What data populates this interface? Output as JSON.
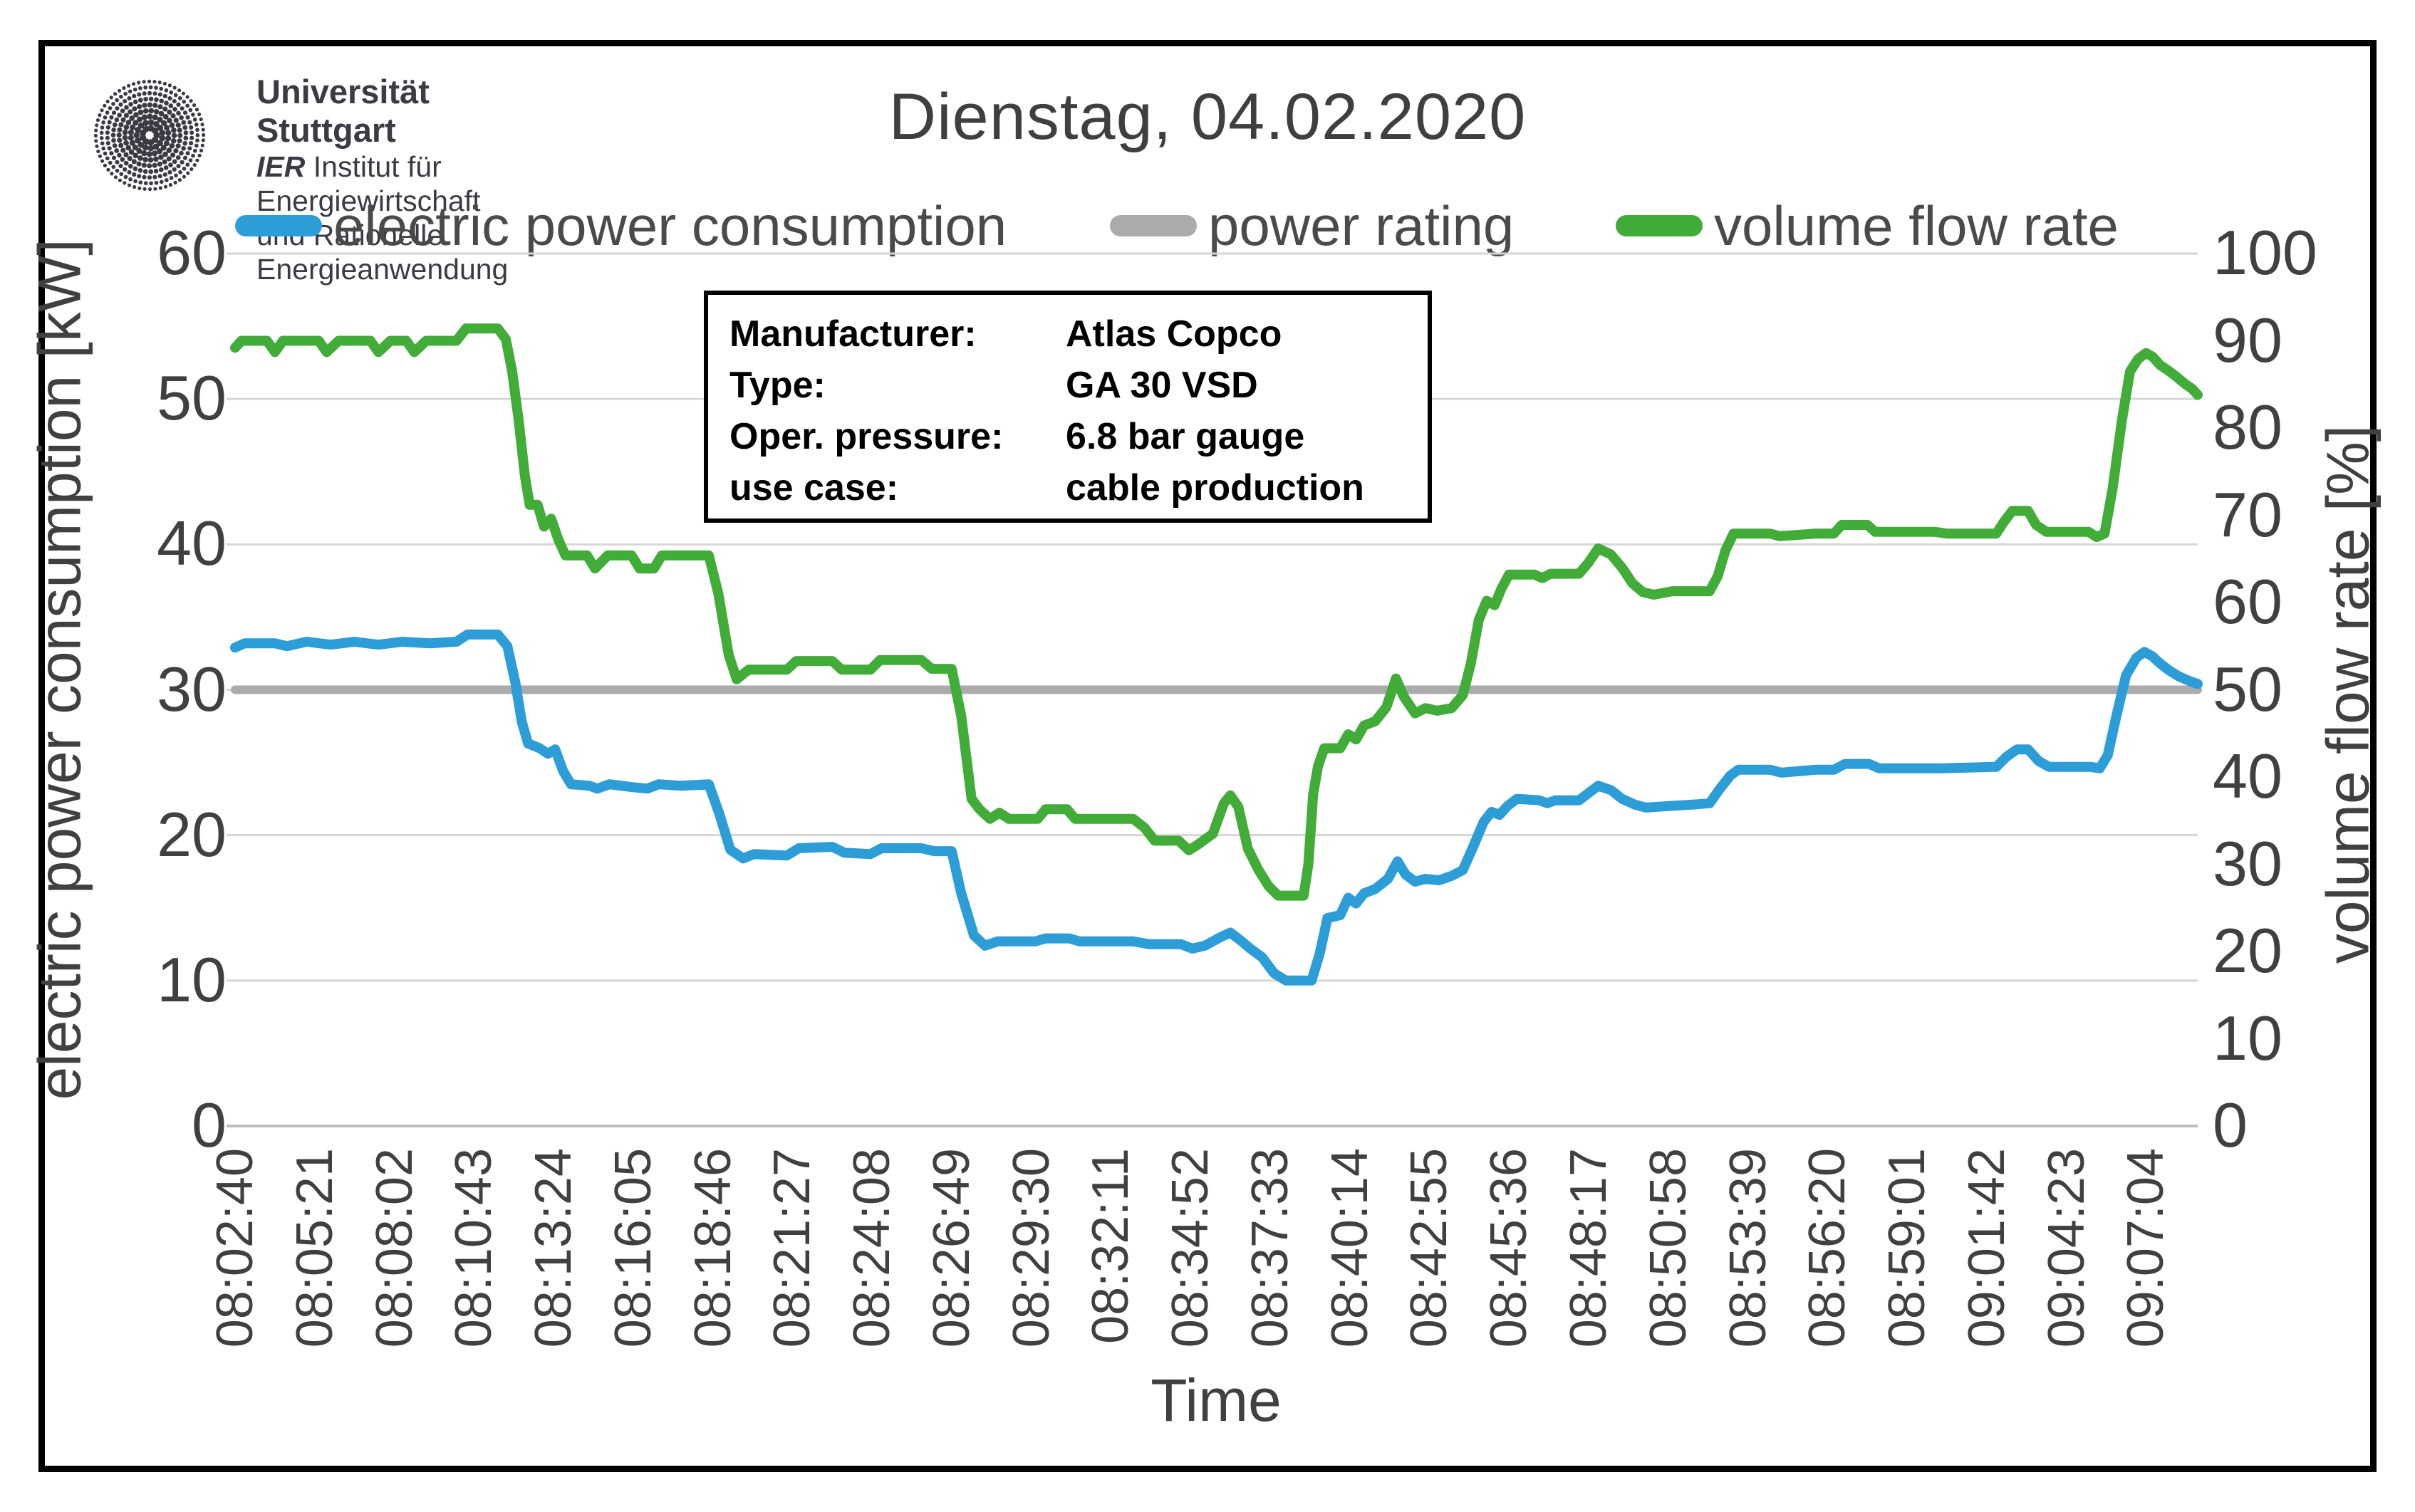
{
  "header": {
    "title": "Dienstag, 04.02.2020",
    "logo": {
      "line1": "Universität Stuttgart",
      "line2_prefix": "IER",
      "line2_rest": " Institut für Energiewirtschaft",
      "line3": "und Rationelle Energieanwendung"
    }
  },
  "legend": [
    {
      "label": "electric power consumption",
      "color": "#2D9DD7"
    },
    {
      "label": "power rating",
      "color": "#ABABAB"
    },
    {
      "label": "volume flow rate",
      "color": "#42AC39"
    }
  ],
  "info_box": {
    "rows": [
      {
        "label": "Manufacturer:",
        "value": "Atlas Copco"
      },
      {
        "label": "Type:",
        "value": "GA 30 VSD"
      },
      {
        "label": "Oper. pressure:",
        "value": "6.8 bar gauge"
      },
      {
        "label": "use case:",
        "value": "cable production"
      }
    ]
  },
  "chart_data": {
    "type": "line",
    "title": "Dienstag, 04.02.2020",
    "x_title": "Time",
    "x_labels": [
      "08:02:40",
      "08:05:21",
      "08:08:02",
      "08:10:43",
      "08:13:24",
      "08:16:05",
      "08:18:46",
      "08:21:27",
      "08:24:08",
      "08:26:49",
      "08:29:30",
      "08:32:11",
      "08:34:52",
      "08:37:33",
      "08:40:14",
      "08:42:55",
      "08:45:36",
      "08:48:17",
      "08:50:58",
      "08:53:39",
      "08:56:20",
      "08:59:01",
      "09:01:42",
      "09:04:23",
      "09:07:04"
    ],
    "x_index_max": 24.65,
    "grid": {
      "horizontal": true,
      "vertical": false,
      "color": "#D6D6D6"
    },
    "left_axis": {
      "title": "electric power consumption [kW]",
      "min": 0,
      "max": 60,
      "ticks": [
        0,
        10,
        20,
        30,
        40,
        50,
        60
      ]
    },
    "right_axis": {
      "title": "volume flow rate [%]",
      "min": 0,
      "max": 100,
      "ticks": [
        0,
        10,
        20,
        30,
        40,
        50,
        60,
        70,
        80,
        90,
        100
      ]
    },
    "series": [
      {
        "name": "power rating",
        "axis": "left",
        "color": "#ABABAB",
        "width": 12,
        "points": [
          [
            0,
            30
          ],
          [
            24.65,
            30
          ]
        ]
      },
      {
        "name": "volume flow rate",
        "axis": "right",
        "color": "#42AC39",
        "width": 14,
        "points": [
          [
            0,
            89.2
          ],
          [
            0.08,
            90
          ],
          [
            0.4,
            90
          ],
          [
            0.5,
            88.7
          ],
          [
            0.6,
            90
          ],
          [
            1.05,
            90
          ],
          [
            1.15,
            88.7
          ],
          [
            1.3,
            90
          ],
          [
            1.7,
            90
          ],
          [
            1.8,
            88.7
          ],
          [
            1.95,
            90
          ],
          [
            2.15,
            90
          ],
          [
            2.25,
            88.7
          ],
          [
            2.4,
            90
          ],
          [
            2.78,
            90
          ],
          [
            2.9,
            91.4
          ],
          [
            3.3,
            91.4
          ],
          [
            3.4,
            90.2
          ],
          [
            3.48,
            86.5
          ],
          [
            3.56,
            81
          ],
          [
            3.64,
            74.5
          ],
          [
            3.7,
            71.2
          ],
          [
            3.8,
            71.2
          ],
          [
            3.88,
            68.7
          ],
          [
            3.97,
            69.6
          ],
          [
            4.06,
            67.2
          ],
          [
            4.15,
            65.4
          ],
          [
            4.42,
            65.4
          ],
          [
            4.52,
            63.9
          ],
          [
            4.68,
            65.4
          ],
          [
            4.98,
            65.4
          ],
          [
            5.08,
            63.9
          ],
          [
            5.26,
            63.9
          ],
          [
            5.36,
            65.4
          ],
          [
            5.95,
            65.4
          ],
          [
            6.07,
            61
          ],
          [
            6.2,
            54
          ],
          [
            6.3,
            51.2
          ],
          [
            6.45,
            52.3
          ],
          [
            6.93,
            52.3
          ],
          [
            7.05,
            53.3
          ],
          [
            7.5,
            53.3
          ],
          [
            7.62,
            52.3
          ],
          [
            7.98,
            52.3
          ],
          [
            8.1,
            53.4
          ],
          [
            8.62,
            53.4
          ],
          [
            8.75,
            52.4
          ],
          [
            9,
            52.4
          ],
          [
            9.12,
            47
          ],
          [
            9.25,
            37.5
          ],
          [
            9.35,
            36.3
          ],
          [
            9.48,
            35.2
          ],
          [
            9.6,
            35.9
          ],
          [
            9.72,
            35.2
          ],
          [
            10.08,
            35.2
          ],
          [
            10.18,
            36.3
          ],
          [
            10.45,
            36.3
          ],
          [
            10.55,
            35.2
          ],
          [
            11.28,
            35.2
          ],
          [
            11.42,
            34.2
          ],
          [
            11.55,
            32.7
          ],
          [
            11.85,
            32.7
          ],
          [
            11.98,
            31.6
          ],
          [
            12.1,
            32.3
          ],
          [
            12.28,
            33.5
          ],
          [
            12.42,
            37
          ],
          [
            12.5,
            37.9
          ],
          [
            12.6,
            36.6
          ],
          [
            12.72,
            31.8
          ],
          [
            12.85,
            29.4
          ],
          [
            12.98,
            27.5
          ],
          [
            13.1,
            26.4
          ],
          [
            13.42,
            26.4
          ],
          [
            13.48,
            30
          ],
          [
            13.54,
            38
          ],
          [
            13.6,
            41.2
          ],
          [
            13.68,
            43.3
          ],
          [
            13.88,
            43.3
          ],
          [
            13.98,
            44.9
          ],
          [
            14.08,
            44.3
          ],
          [
            14.18,
            45.9
          ],
          [
            14.32,
            46.4
          ],
          [
            14.46,
            48
          ],
          [
            14.58,
            51.3
          ],
          [
            14.68,
            49.2
          ],
          [
            14.82,
            47.3
          ],
          [
            14.95,
            47.9
          ],
          [
            15.1,
            47.6
          ],
          [
            15.28,
            47.9
          ],
          [
            15.42,
            49.4
          ],
          [
            15.52,
            53
          ],
          [
            15.62,
            58
          ],
          [
            15.72,
            60.2
          ],
          [
            15.82,
            59.7
          ],
          [
            15.9,
            61.5
          ],
          [
            16,
            63.2
          ],
          [
            16.32,
            63.2
          ],
          [
            16.42,
            62.8
          ],
          [
            16.52,
            63.3
          ],
          [
            16.88,
            63.3
          ],
          [
            17,
            64.6
          ],
          [
            17.12,
            66.2
          ],
          [
            17.28,
            65.5
          ],
          [
            17.42,
            64
          ],
          [
            17.55,
            62.2
          ],
          [
            17.68,
            61.2
          ],
          [
            17.82,
            60.9
          ],
          [
            18.05,
            61.3
          ],
          [
            18.52,
            61.3
          ],
          [
            18.62,
            63
          ],
          [
            18.72,
            66
          ],
          [
            18.82,
            67.9
          ],
          [
            19.28,
            67.9
          ],
          [
            19.4,
            67.6
          ],
          [
            19.85,
            67.9
          ],
          [
            20.08,
            67.9
          ],
          [
            20.18,
            68.9
          ],
          [
            20.5,
            68.9
          ],
          [
            20.6,
            68.1
          ],
          [
            21.35,
            68.1
          ],
          [
            21.5,
            67.9
          ],
          [
            22.12,
            67.9
          ],
          [
            22.22,
            69.3
          ],
          [
            22.32,
            70.5
          ],
          [
            22.52,
            70.5
          ],
          [
            22.62,
            68.9
          ],
          [
            22.75,
            68.1
          ],
          [
            23.28,
            68.1
          ],
          [
            23.38,
            67.5
          ],
          [
            23.48,
            67.9
          ],
          [
            23.58,
            73
          ],
          [
            23.7,
            81
          ],
          [
            23.8,
            86.5
          ],
          [
            23.9,
            87.9
          ],
          [
            24,
            88.6
          ],
          [
            24.08,
            88.2
          ],
          [
            24.18,
            87.2
          ],
          [
            24.28,
            86.6
          ],
          [
            24.38,
            85.9
          ],
          [
            24.5,
            85
          ],
          [
            24.58,
            84.5
          ],
          [
            24.65,
            83.8
          ]
        ]
      },
      {
        "name": "electric power consumption",
        "axis": "left",
        "color": "#2D9DD7",
        "width": 14,
        "points": [
          [
            0,
            32.9
          ],
          [
            0.12,
            33.2
          ],
          [
            0.5,
            33.2
          ],
          [
            0.65,
            33
          ],
          [
            0.9,
            33.3
          ],
          [
            1.2,
            33.1
          ],
          [
            1.5,
            33.3
          ],
          [
            1.8,
            33.1
          ],
          [
            2.1,
            33.3
          ],
          [
            2.45,
            33.2
          ],
          [
            2.78,
            33.3
          ],
          [
            2.92,
            33.8
          ],
          [
            3.3,
            33.8
          ],
          [
            3.42,
            33
          ],
          [
            3.52,
            30.5
          ],
          [
            3.6,
            27.8
          ],
          [
            3.68,
            26.3
          ],
          [
            3.82,
            26
          ],
          [
            3.93,
            25.6
          ],
          [
            4.02,
            25.9
          ],
          [
            4.12,
            24.4
          ],
          [
            4.22,
            23.5
          ],
          [
            4.45,
            23.4
          ],
          [
            4.55,
            23.2
          ],
          [
            4.7,
            23.5
          ],
          [
            5,
            23.3
          ],
          [
            5.18,
            23.2
          ],
          [
            5.32,
            23.5
          ],
          [
            5.6,
            23.4
          ],
          [
            5.95,
            23.5
          ],
          [
            6.08,
            21.5
          ],
          [
            6.22,
            19
          ],
          [
            6.38,
            18.4
          ],
          [
            6.52,
            18.7
          ],
          [
            6.93,
            18.6
          ],
          [
            7.08,
            19.1
          ],
          [
            7.5,
            19.2
          ],
          [
            7.65,
            18.8
          ],
          [
            7.98,
            18.7
          ],
          [
            8.12,
            19.1
          ],
          [
            8.62,
            19.1
          ],
          [
            8.78,
            18.9
          ],
          [
            9,
            18.9
          ],
          [
            9.12,
            16
          ],
          [
            9.28,
            13.1
          ],
          [
            9.42,
            12.4
          ],
          [
            9.58,
            12.7
          ],
          [
            10.05,
            12.7
          ],
          [
            10.18,
            12.9
          ],
          [
            10.48,
            12.9
          ],
          [
            10.6,
            12.7
          ],
          [
            11.28,
            12.7
          ],
          [
            11.48,
            12.5
          ],
          [
            11.88,
            12.5
          ],
          [
            12.02,
            12.2
          ],
          [
            12.18,
            12.4
          ],
          [
            12.38,
            13
          ],
          [
            12.5,
            13.3
          ],
          [
            12.62,
            12.8
          ],
          [
            12.75,
            12.2
          ],
          [
            12.9,
            11.6
          ],
          [
            13.05,
            10.5
          ],
          [
            13.2,
            10
          ],
          [
            13.52,
            10
          ],
          [
            13.62,
            11.8
          ],
          [
            13.72,
            14.3
          ],
          [
            13.88,
            14.5
          ],
          [
            13.98,
            15.7
          ],
          [
            14.08,
            15.3
          ],
          [
            14.18,
            16
          ],
          [
            14.32,
            16.3
          ],
          [
            14.48,
            17
          ],
          [
            14.6,
            18.2
          ],
          [
            14.7,
            17.3
          ],
          [
            14.82,
            16.8
          ],
          [
            14.95,
            17
          ],
          [
            15.12,
            16.9
          ],
          [
            15.28,
            17.2
          ],
          [
            15.42,
            17.6
          ],
          [
            15.55,
            19.2
          ],
          [
            15.68,
            20.9
          ],
          [
            15.78,
            21.6
          ],
          [
            15.88,
            21.4
          ],
          [
            15.98,
            22
          ],
          [
            16.1,
            22.5
          ],
          [
            16.38,
            22.4
          ],
          [
            16.48,
            22.2
          ],
          [
            16.58,
            22.4
          ],
          [
            16.88,
            22.4
          ],
          [
            17,
            22.9
          ],
          [
            17.12,
            23.4
          ],
          [
            17.28,
            23.1
          ],
          [
            17.42,
            22.5
          ],
          [
            17.58,
            22.1
          ],
          [
            17.72,
            21.9
          ],
          [
            18,
            22
          ],
          [
            18.3,
            22.1
          ],
          [
            18.52,
            22.2
          ],
          [
            18.65,
            23.2
          ],
          [
            18.78,
            24.1
          ],
          [
            18.88,
            24.5
          ],
          [
            19.28,
            24.5
          ],
          [
            19.42,
            24.3
          ],
          [
            19.85,
            24.5
          ],
          [
            20.08,
            24.5
          ],
          [
            20.22,
            24.9
          ],
          [
            20.52,
            24.9
          ],
          [
            20.65,
            24.6
          ],
          [
            21.45,
            24.6
          ],
          [
            22.12,
            24.7
          ],
          [
            22.25,
            25.4
          ],
          [
            22.38,
            25.9
          ],
          [
            22.52,
            25.9
          ],
          [
            22.65,
            25.1
          ],
          [
            22.78,
            24.7
          ],
          [
            23.3,
            24.7
          ],
          [
            23.42,
            24.6
          ],
          [
            23.52,
            25.5
          ],
          [
            23.62,
            28
          ],
          [
            23.75,
            31
          ],
          [
            23.88,
            32.2
          ],
          [
            23.98,
            32.6
          ],
          [
            24.08,
            32.3
          ],
          [
            24.18,
            31.8
          ],
          [
            24.3,
            31.3
          ],
          [
            24.42,
            30.9
          ],
          [
            24.55,
            30.6
          ],
          [
            24.65,
            30.4
          ]
        ]
      }
    ]
  }
}
